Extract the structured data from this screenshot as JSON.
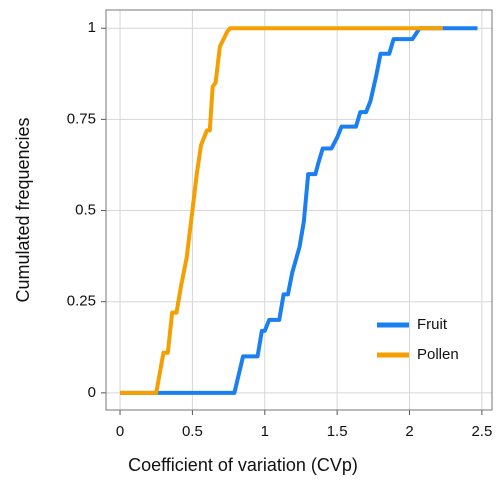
{
  "chart_data": {
    "type": "line",
    "xlabel": "Coefficient of variation (CVp)",
    "ylabel": "Cumulated frequencies",
    "xlim": [
      -0.097,
      2.57
    ],
    "ylim": [
      -0.047,
      1.05
    ],
    "xticks": [
      0,
      0.5,
      1,
      1.5,
      2,
      2.5
    ],
    "yticks": [
      0,
      0.25,
      0.5,
      0.75,
      1
    ],
    "grid": true,
    "legend": "lower right",
    "series": [
      {
        "name": "Fruit",
        "color": "#1a7ff0",
        "x": [
          0,
          0.79,
          0.85,
          0.95,
          0.98,
          1.0,
          1.03,
          1.1,
          1.13,
          1.16,
          1.19,
          1.24,
          1.27,
          1.3,
          1.35,
          1.37,
          1.4,
          1.46,
          1.5,
          1.53,
          1.63,
          1.66,
          1.7,
          1.73,
          1.77,
          1.8,
          1.86,
          1.89,
          2.02,
          2.07,
          2.47
        ],
        "values": [
          0,
          0,
          0.1,
          0.1,
          0.17,
          0.17,
          0.2,
          0.2,
          0.27,
          0.27,
          0.33,
          0.4,
          0.47,
          0.6,
          0.6,
          0.63,
          0.67,
          0.67,
          0.7,
          0.73,
          0.73,
          0.77,
          0.77,
          0.8,
          0.87,
          0.93,
          0.93,
          0.97,
          0.97,
          1,
          1
        ]
      },
      {
        "name": "Pollen",
        "color": "#f5a000",
        "x": [
          0,
          0.25,
          0.3,
          0.33,
          0.36,
          0.39,
          0.42,
          0.46,
          0.5,
          0.53,
          0.56,
          0.6,
          0.62,
          0.64,
          0.66,
          0.69,
          0.74,
          0.76,
          2.23
        ],
        "values": [
          0,
          0,
          0.11,
          0.11,
          0.22,
          0.22,
          0.29,
          0.37,
          0.5,
          0.6,
          0.68,
          0.72,
          0.72,
          0.84,
          0.85,
          0.95,
          0.99,
          1,
          1
        ]
      }
    ]
  }
}
